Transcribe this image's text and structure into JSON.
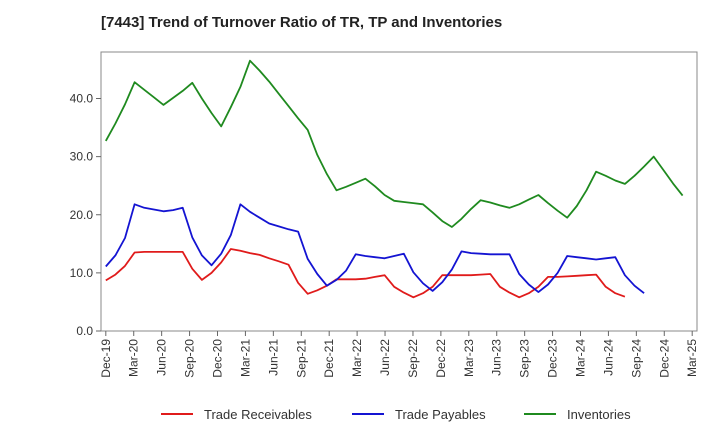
{
  "chart_data": {
    "type": "line",
    "title": "[7443]  Trend of Turnover Ratio of TR, TP and Inventories",
    "xlabel": "",
    "ylabel": "",
    "ylim": [
      0,
      48
    ],
    "yticks": [
      0,
      10,
      20,
      30,
      40
    ],
    "ytick_labels": [
      "0.0",
      "10.0",
      "20.0",
      "30.0",
      "40.0"
    ],
    "xtick_labels": [
      "Dec-19",
      "Mar-20",
      "Jun-20",
      "Sep-20",
      "Dec-20",
      "Mar-21",
      "Jun-21",
      "Sep-21",
      "Dec-21",
      "Mar-22",
      "Jun-22",
      "Sep-22",
      "Dec-22",
      "Mar-23",
      "Jun-23",
      "Sep-23",
      "Dec-23",
      "Mar-24",
      "Jun-24",
      "Sep-24",
      "Dec-24",
      "Mar-25"
    ],
    "x_count": 62,
    "grid": false,
    "legend_position": "bottom",
    "series": [
      {
        "name": "Trade Receivables",
        "color": "#e01b1b",
        "values": [
          8.7,
          9.7,
          11.2,
          13.5,
          13.6,
          13.6,
          13.6,
          13.6,
          13.6,
          10.7,
          8.8,
          10.0,
          11.8,
          14.1,
          13.8,
          13.4,
          13.1,
          12.5,
          12.0,
          11.4,
          8.3,
          6.4,
          7.0,
          7.8,
          8.9,
          8.9,
          8.9,
          9.0,
          9.3,
          9.6,
          7.6,
          6.6,
          5.8,
          6.5,
          7.6,
          9.6,
          9.6,
          9.6,
          9.6,
          9.7,
          9.8,
          7.6,
          6.6,
          5.8,
          6.5,
          7.6,
          9.3,
          9.3,
          9.4,
          9.5,
          9.6,
          9.7,
          7.6,
          6.5,
          5.9
        ]
      },
      {
        "name": "Trade Payables",
        "color": "#1414d2",
        "values": [
          11.1,
          13.0,
          16.0,
          21.8,
          21.2,
          20.9,
          20.6,
          20.8,
          21.2,
          16.1,
          13.0,
          11.3,
          13.3,
          16.5,
          21.8,
          20.5,
          19.5,
          18.5,
          18.0,
          17.5,
          17.1,
          12.4,
          9.8,
          7.8,
          8.8,
          10.4,
          13.2,
          12.9,
          12.7,
          12.5,
          12.9,
          13.3,
          10.1,
          8.2,
          6.9,
          8.4,
          10.6,
          13.7,
          13.4,
          13.3,
          13.2,
          13.2,
          13.2,
          9.8,
          8.0,
          6.7,
          8.0,
          10.0,
          12.9,
          12.7,
          12.5,
          12.3,
          12.5,
          12.7,
          9.6,
          7.8,
          6.5
        ]
      },
      {
        "name": "Inventories",
        "color": "#1f8a1f",
        "values": [
          32.7,
          35.7,
          39.0,
          42.8,
          41.5,
          40.2,
          38.9,
          40.1,
          41.3,
          42.7,
          40.0,
          37.5,
          35.2,
          38.5,
          42.0,
          46.5,
          44.8,
          42.9,
          40.8,
          38.7,
          36.6,
          34.6,
          30.3,
          27.0,
          24.2,
          24.8,
          25.5,
          26.2,
          24.9,
          23.4,
          22.4,
          22.2,
          22.0,
          21.8,
          20.4,
          18.9,
          17.9,
          19.3,
          21.0,
          22.5,
          22.1,
          21.6,
          21.2,
          21.8,
          22.6,
          23.4,
          22.0,
          20.7,
          19.5,
          21.5,
          24.2,
          27.4,
          26.7,
          25.9,
          25.3,
          26.7,
          28.3,
          30.0,
          27.7,
          25.4,
          23.3
        ]
      }
    ]
  }
}
